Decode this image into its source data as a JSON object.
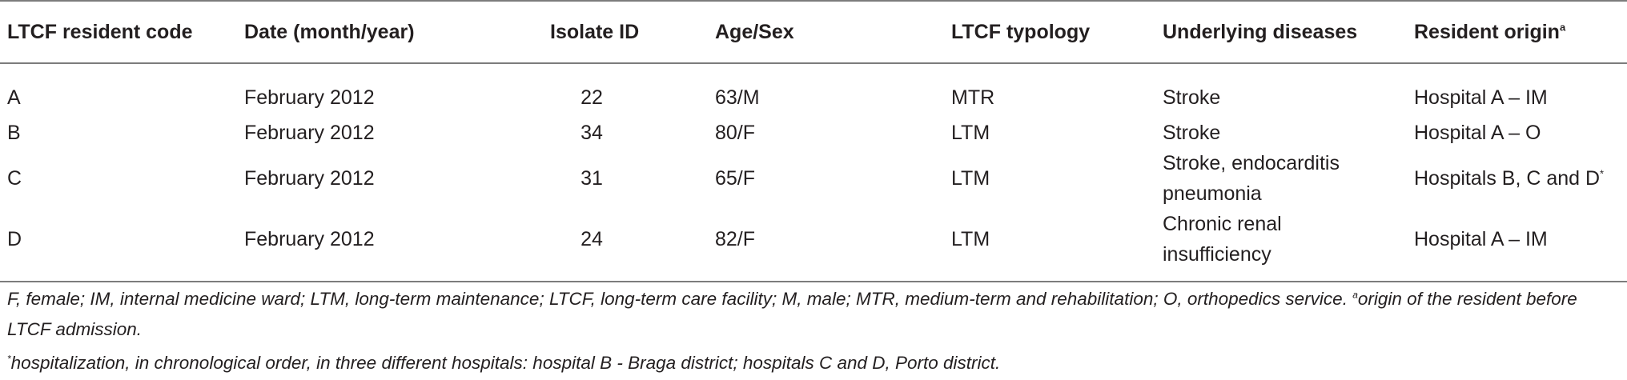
{
  "table": {
    "headers": [
      "LTCF resident code",
      "Date (month/year)",
      "Isolate ID",
      "Age/Sex",
      "LTCF typology",
      "Underlying diseases",
      "Resident origin"
    ],
    "header_origin_sup": "a",
    "rows": [
      {
        "code": "A",
        "date": "February 2012",
        "isolate": "22",
        "age_sex": "63/M",
        "typology": "MTR",
        "diseases_line1": "Stroke",
        "diseases_line2": "",
        "origin": "Hospital A – IM",
        "origin_sup": ""
      },
      {
        "code": "B",
        "date": "February 2012",
        "isolate": "34",
        "age_sex": "80/F",
        "typology": "LTM",
        "diseases_line1": "Stroke",
        "diseases_line2": "",
        "origin": "Hospital A – O",
        "origin_sup": ""
      },
      {
        "code": "C",
        "date": "February 2012",
        "isolate": "31",
        "age_sex": "65/F",
        "typology": "LTM",
        "diseases_line1": "Stroke, endocarditis",
        "diseases_line2": "pneumonia",
        "origin": "Hospitals B, C and D",
        "origin_sup": "*"
      },
      {
        "code": "D",
        "date": "February 2012",
        "isolate": "24",
        "age_sex": "82/F",
        "typology": "LTM",
        "diseases_line1": "Chronic renal",
        "diseases_line2": "insufficiency",
        "origin": "Hospital A – IM",
        "origin_sup": ""
      }
    ]
  },
  "footnotes": {
    "abbreviations": "F, female; IM, internal medicine ward; LTM, long-term maintenance; LTCF, long-term care facility; M, male; MTR, medium-term and rehabilitation; O, orthopedics service. ",
    "note_a_mark": "a",
    "note_a_text": "origin of the resident before LTCF admission.",
    "note_star_mark": "*",
    "note_star_text": "hospitalization, in chronological order, in three different hospitals: hospital B - Braga district; hospitals C and D, Porto district."
  }
}
